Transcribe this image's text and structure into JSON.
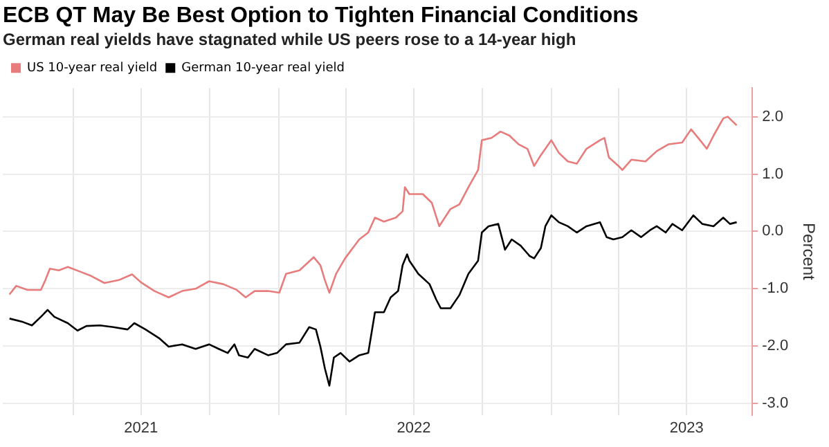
{
  "chart_data": {
    "type": "line",
    "title": "ECB QT May Be Best Option to Tighten Financial Conditions",
    "subtitle": "German real yields have stagnated while US peers rose to a 14-year high",
    "ylabel": "Percent",
    "xlim": [
      "2020-12-28",
      "2023-09-27"
    ],
    "xticks": [
      {
        "value": "2021-04-01",
        "label": null
      },
      {
        "value": "2021-07-01",
        "label": "2021"
      },
      {
        "value": "2021-10-01",
        "label": null
      },
      {
        "value": "2022-01-01",
        "label": null
      },
      {
        "value": "2022-04-01",
        "label": null
      },
      {
        "value": "2022-07-01",
        "label": "2022"
      },
      {
        "value": "2022-10-01",
        "label": null
      },
      {
        "value": "2023-01-01",
        "label": null
      },
      {
        "value": "2023-04-01",
        "label": null
      },
      {
        "value": "2023-07-01",
        "label": "2023"
      }
    ],
    "ylim": [
      -3.2,
      2.5
    ],
    "yticks": [
      {
        "value": -3,
        "label": "-3.0"
      },
      {
        "value": -2,
        "label": "-2.0"
      },
      {
        "value": -1,
        "label": "-1.0"
      },
      {
        "value": 0,
        "label": "0.0"
      },
      {
        "value": 1,
        "label": "1.0"
      },
      {
        "value": 2,
        "label": "2.0"
      }
    ],
    "grid": true,
    "legend": "top left",
    "marker": "none",
    "line_style": "solid",
    "series": [
      {
        "name": "US 10-year real yield",
        "color": "#e87b7b",
        "x": [
          "2021-01-06",
          "2021-01-15",
          "2021-01-30",
          "2021-02-17",
          "2021-02-23",
          "2021-03-01",
          "2021-03-13",
          "2021-03-25",
          "2021-04-10",
          "2021-04-24",
          "2021-05-13",
          "2021-06-01",
          "2021-06-19",
          "2021-07-01",
          "2021-07-19",
          "2021-08-07",
          "2021-08-25",
          "2021-09-12",
          "2021-09-30",
          "2021-10-19",
          "2021-11-06",
          "2021-11-18",
          "2021-11-30",
          "2021-12-18",
          "2022-01-02",
          "2022-01-11",
          "2022-01-29",
          "2022-02-17",
          "2022-02-26",
          "2022-03-04",
          "2022-03-10",
          "2022-03-19",
          "2022-03-31",
          "2022-04-19",
          "2022-05-01",
          "2022-05-10",
          "2022-05-22",
          "2022-06-07",
          "2022-06-16",
          "2022-06-19",
          "2022-06-25",
          "2022-07-13",
          "2022-07-25",
          "2022-08-04",
          "2022-08-19",
          "2022-08-31",
          "2022-09-12",
          "2022-09-25",
          "2022-09-30",
          "2022-10-13",
          "2022-10-25",
          "2022-11-06",
          "2022-11-18",
          "2022-11-30",
          "2022-12-09",
          "2022-12-18",
          "2023-01-01",
          "2023-01-11",
          "2023-01-23",
          "2023-02-04",
          "2023-02-17",
          "2023-03-07",
          "2023-03-13",
          "2023-03-19",
          "2023-04-01",
          "2023-04-06",
          "2023-04-18",
          "2023-05-07",
          "2023-05-22",
          "2023-06-07",
          "2023-06-25",
          "2023-07-07",
          "2023-07-19",
          "2023-07-28",
          "2023-08-06",
          "2023-08-19",
          "2023-08-25",
          "2023-09-06"
        ],
        "values": [
          -1.1,
          -0.95,
          -1.02,
          -1.02,
          -0.85,
          -0.65,
          -0.68,
          -0.62,
          -0.7,
          -0.77,
          -0.9,
          -0.85,
          -0.75,
          -0.89,
          -1.04,
          -1.15,
          -1.04,
          -1.0,
          -0.87,
          -0.92,
          -1.02,
          -1.15,
          -1.04,
          -1.04,
          -1.07,
          -0.74,
          -0.68,
          -0.45,
          -0.59,
          -0.85,
          -1.07,
          -0.74,
          -0.47,
          -0.14,
          -0.02,
          0.24,
          0.17,
          0.24,
          0.35,
          0.77,
          0.65,
          0.65,
          0.5,
          0.09,
          0.39,
          0.47,
          0.77,
          1.07,
          1.59,
          1.63,
          1.74,
          1.67,
          1.52,
          1.44,
          1.14,
          1.33,
          1.59,
          1.37,
          1.22,
          1.18,
          1.44,
          1.59,
          1.63,
          1.29,
          1.14,
          1.07,
          1.25,
          1.22,
          1.4,
          1.52,
          1.55,
          1.78,
          1.59,
          1.44,
          1.67,
          1.97,
          2.0,
          1.85
        ]
      },
      {
        "name": "German 10-year real yield",
        "color": "#000000",
        "x": [
          "2021-01-06",
          "2021-01-24",
          "2021-02-05",
          "2021-02-17",
          "2021-02-26",
          "2021-03-07",
          "2021-03-25",
          "2021-04-07",
          "2021-04-19",
          "2021-05-07",
          "2021-05-25",
          "2021-06-13",
          "2021-06-22",
          "2021-07-07",
          "2021-07-25",
          "2021-08-07",
          "2021-08-25",
          "2021-09-12",
          "2021-09-30",
          "2021-10-13",
          "2021-10-25",
          "2021-11-03",
          "2021-11-09",
          "2021-11-21",
          "2021-11-30",
          "2021-12-18",
          "2021-12-30",
          "2022-01-11",
          "2022-01-29",
          "2022-02-11",
          "2022-02-20",
          "2022-02-26",
          "2022-03-04",
          "2022-03-10",
          "2022-03-16",
          "2022-03-25",
          "2022-04-06",
          "2022-04-19",
          "2022-05-01",
          "2022-05-10",
          "2022-05-22",
          "2022-05-31",
          "2022-06-10",
          "2022-06-16",
          "2022-06-22",
          "2022-06-25",
          "2022-07-07",
          "2022-07-22",
          "2022-07-31",
          "2022-08-06",
          "2022-08-19",
          "2022-08-31",
          "2022-09-12",
          "2022-09-25",
          "2022-09-30",
          "2022-10-09",
          "2022-10-22",
          "2022-10-31",
          "2022-11-09",
          "2022-11-21",
          "2022-12-03",
          "2022-12-09",
          "2022-12-18",
          "2022-12-24",
          "2023-01-01",
          "2023-01-11",
          "2023-01-23",
          "2023-02-04",
          "2023-02-17",
          "2023-03-07",
          "2023-03-16",
          "2023-03-25",
          "2023-04-06",
          "2023-04-18",
          "2023-05-01",
          "2023-05-13",
          "2023-05-22",
          "2023-06-03",
          "2023-06-12",
          "2023-06-25",
          "2023-07-10",
          "2023-07-22",
          "2023-08-06",
          "2023-08-19",
          "2023-08-28",
          "2023-09-06"
        ],
        "values": [
          -1.52,
          -1.58,
          -1.64,
          -1.49,
          -1.37,
          -1.49,
          -1.6,
          -1.73,
          -1.65,
          -1.64,
          -1.67,
          -1.71,
          -1.6,
          -1.71,
          -1.86,
          -2.01,
          -1.97,
          -2.05,
          -1.97,
          -2.05,
          -2.12,
          -1.97,
          -2.16,
          -2.2,
          -2.05,
          -2.16,
          -2.12,
          -1.97,
          -1.94,
          -1.67,
          -1.71,
          -2.01,
          -2.39,
          -2.69,
          -2.2,
          -2.12,
          -2.27,
          -2.16,
          -2.12,
          -1.41,
          -1.41,
          -1.15,
          -1.04,
          -0.59,
          -0.4,
          -0.51,
          -0.74,
          -0.92,
          -1.19,
          -1.34,
          -1.34,
          -1.11,
          -0.74,
          -0.51,
          -0.02,
          0.09,
          0.13,
          -0.32,
          -0.14,
          -0.25,
          -0.43,
          -0.47,
          -0.29,
          0.09,
          0.28,
          0.16,
          0.09,
          -0.02,
          0.09,
          0.16,
          -0.1,
          -0.14,
          -0.1,
          0.02,
          -0.1,
          0.02,
          0.09,
          -0.02,
          0.13,
          0.02,
          0.28,
          0.13,
          0.09,
          0.24,
          0.13,
          0.16
        ]
      }
    ]
  }
}
